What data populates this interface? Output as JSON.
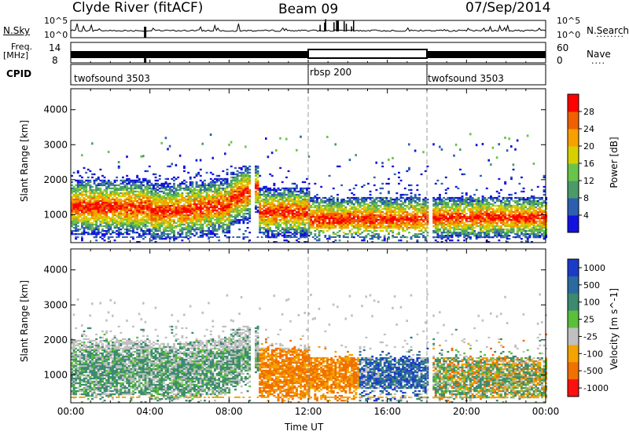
{
  "header": {
    "station": "Clyde River (fitACF)",
    "beam": "Beam 09",
    "date": "07/Sep/2014"
  },
  "top_panels": {
    "nsky_label": "N.Sky",
    "nsky_ticks": [
      "10^5",
      "10^0"
    ],
    "nsearch_label": "N.Search",
    "nsearch_ticks": [
      "10^5",
      "10^0"
    ],
    "freq_label": "Freq.",
    "freq_unit": "[MHz]",
    "freq_ticks": [
      "14",
      "8"
    ],
    "nave_label": "Nave",
    "nave_ticks": [
      "60",
      "0"
    ],
    "cpid_label": "CPID"
  },
  "cpid_segments": [
    {
      "start_hour": 0,
      "label": "twofsound 3503"
    },
    {
      "start_hour": 12,
      "label": "rbsp 200"
    },
    {
      "start_hour": 18,
      "label": "twofsound 3503"
    }
  ],
  "colors": {
    "power_scale": [
      "#1212e0",
      "#2d5fb0",
      "#4a9a6a",
      "#69c44a",
      "#d7d000",
      "#f7a000",
      "#f06000",
      "#ff0000"
    ],
    "velocity_scale": [
      "#1a3cc8",
      "#2a6aa0",
      "#3c8a70",
      "#5abf3a",
      "#c0c0c0",
      "#f4a300",
      "#f07000",
      "#ff1010"
    ]
  },
  "chart_data": [
    {
      "type": "heatmap",
      "name": "power",
      "ylabel": "Slant Range [km]",
      "yticks": [
        1000,
        2000,
        3000,
        4000
      ],
      "ylim": [
        200,
        4600
      ],
      "xlim": [
        0,
        24
      ],
      "colorbar_label": "Power [dB]",
      "colorbar_ticks": [
        "4",
        "8",
        "12",
        "16",
        "20",
        "24",
        "28"
      ],
      "colorbar_range": [
        0,
        30
      ]
    },
    {
      "type": "heatmap",
      "name": "velocity",
      "ylabel": "Slant Range [km]",
      "yticks": [
        1000,
        2000,
        3000,
        4000
      ],
      "ylim": [
        200,
        4600
      ],
      "xlim": [
        0,
        24
      ],
      "colorbar_label": "Velocity [m s^-1]",
      "colorbar_ticks": [
        "-1000",
        "-500",
        "-100",
        "-25",
        "25",
        "100",
        "500",
        "1000"
      ]
    }
  ],
  "xaxis": {
    "label": "Time UT",
    "ticks": [
      "00:00",
      "04:00",
      "08:00",
      "12:00",
      "16:00",
      "20:00",
      "00:00"
    ]
  }
}
